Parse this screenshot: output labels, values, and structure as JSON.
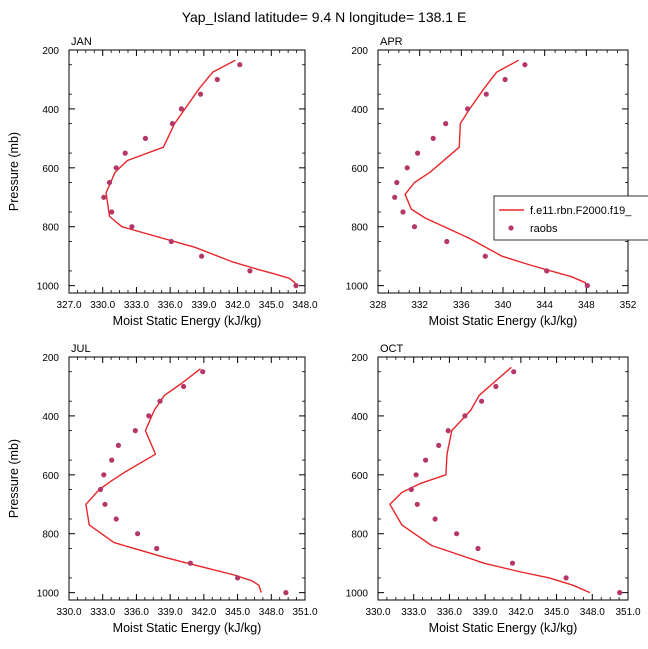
{
  "title": "Yap_Island  latitude= 9.4 N longitude= 138.1 E",
  "colors": {
    "model": "#e8262a",
    "obs": "#b5376a",
    "axis": "#000000"
  },
  "legend": {
    "model_label": "f.e11.rbn.F2000.f19_",
    "obs_label": "raobs"
  },
  "chart_data": [
    {
      "type": "line",
      "panel": "JAN",
      "xlabel": "Moist Static Energy (kJ/kg)",
      "ylabel": "Pressure (mb)",
      "xlim": [
        327,
        348
      ],
      "ylim": [
        200,
        1025
      ],
      "xticks": [
        "327.0",
        "330.0",
        "333.0",
        "336.0",
        "339.0",
        "342.0",
        "345.0",
        "348.0"
      ],
      "yticks": [
        "200",
        "400",
        "600",
        "800",
        "1000"
      ],
      "model": {
        "name": "f.e11.rbn.F2000.f19_",
        "x": [
          341.8,
          339.8,
          338.6,
          336.4,
          335.4,
          332.2,
          331.1,
          330.3,
          330.6,
          331.7,
          338.2,
          341.6,
          343.8,
          345.3,
          346.6,
          347.1,
          347.3
        ],
        "y": [
          235,
          275,
          330,
          450,
          530,
          575,
          615,
          685,
          765,
          800,
          870,
          920,
          945,
          960,
          975,
          990,
          1005
        ]
      },
      "obs": {
        "name": "raobs",
        "x": [
          342.2,
          340.2,
          338.7,
          337.0,
          336.2,
          333.8,
          332.0,
          331.2,
          330.6,
          330.1,
          330.8,
          332.6,
          336.1,
          338.8,
          343.1,
          347.2
        ],
        "y": [
          250,
          300,
          350,
          400,
          450,
          500,
          550,
          600,
          650,
          700,
          750,
          800,
          850,
          900,
          950,
          1000
        ]
      }
    },
    {
      "type": "line",
      "panel": "APR",
      "xlabel": "Moist Static Energy (kJ/kg)",
      "ylabel": "",
      "xlim": [
        328,
        352
      ],
      "ylim": [
        200,
        1025
      ],
      "xticks": [
        "328",
        "332",
        "336",
        "340",
        "344",
        "348",
        "352"
      ],
      "yticks": [
        "200",
        "400",
        "600",
        "800",
        "1000"
      ],
      "model": {
        "name": "f.e11.rbn.F2000.f19_",
        "x": [
          341.5,
          339.4,
          338.2,
          336.8,
          335.9,
          335.8,
          333.0,
          331.5,
          330.6,
          331.2,
          332.5,
          336.8,
          339.9,
          342.6,
          344.6,
          346.6,
          347.9,
          348.0
        ],
        "y": [
          235,
          275,
          330,
          400,
          450,
          530,
          615,
          650,
          690,
          740,
          770,
          840,
          900,
          930,
          950,
          970,
          990,
          1000
        ]
      },
      "obs": {
        "name": "raobs",
        "x": [
          342.1,
          340.2,
          338.4,
          336.6,
          334.5,
          333.3,
          331.8,
          330.8,
          329.8,
          329.6,
          330.4,
          331.5,
          334.6,
          338.3,
          344.2,
          348.1
        ],
        "y": [
          250,
          300,
          350,
          400,
          450,
          500,
          550,
          600,
          650,
          700,
          750,
          800,
          850,
          900,
          950,
          1000
        ]
      }
    },
    {
      "type": "line",
      "panel": "JUL",
      "xlabel": "Moist Static Energy (kJ/kg)",
      "ylabel": "Pressure (mb)",
      "xlim": [
        330,
        351
      ],
      "ylim": [
        200,
        1025
      ],
      "xticks": [
        "330.0",
        "333.0",
        "336.0",
        "339.0",
        "342.0",
        "345.0",
        "348.0",
        "351.0"
      ],
      "yticks": [
        "200",
        "400",
        "600",
        "800",
        "1000"
      ],
      "model": {
        "name": "f.e11.rbn.F2000.f19_",
        "x": [
          341.7,
          340.0,
          338.5,
          337.6,
          336.8,
          337.7,
          335.0,
          333.8,
          332.7,
          331.5,
          331.8,
          334.0,
          338.5,
          342.6,
          344.7,
          346.3,
          346.9,
          347.1
        ],
        "y": [
          240,
          290,
          330,
          380,
          450,
          530,
          590,
          620,
          650,
          700,
          770,
          830,
          880,
          920,
          940,
          960,
          975,
          1000
        ]
      },
      "obs": {
        "name": "raobs",
        "x": [
          341.9,
          340.2,
          338.1,
          337.1,
          335.9,
          334.4,
          333.8,
          333.1,
          332.8,
          333.2,
          334.2,
          336.1,
          337.8,
          340.8,
          345.0,
          349.3
        ],
        "y": [
          250,
          300,
          350,
          400,
          450,
          500,
          550,
          600,
          650,
          700,
          750,
          800,
          850,
          900,
          950,
          1000
        ]
      }
    },
    {
      "type": "line",
      "panel": "OCT",
      "xlabel": "Moist Static Energy (kJ/kg)",
      "ylabel": "",
      "xlim": [
        330,
        351
      ],
      "ylim": [
        200,
        1025
      ],
      "xticks": [
        "330.0",
        "333.0",
        "336.0",
        "339.0",
        "342.0",
        "345.0",
        "348.0",
        "351.0"
      ],
      "yticks": [
        "200",
        "400",
        "600",
        "800",
        "1000"
      ],
      "model": {
        "name": "f.e11.rbn.F2000.f19_",
        "x": [
          341.2,
          338.5,
          337.8,
          336.2,
          335.8,
          335.7,
          333.5,
          332.0,
          331.0,
          332.0,
          334.5,
          338.9,
          342.0,
          344.4,
          346.4,
          347.8
        ],
        "y": [
          235,
          330,
          380,
          450,
          530,
          600,
          630,
          660,
          700,
          770,
          840,
          900,
          930,
          950,
          975,
          1000
        ]
      },
      "obs": {
        "name": "raobs",
        "x": [
          341.4,
          339.9,
          338.7,
          337.3,
          335.9,
          335.1,
          334.0,
          333.2,
          332.8,
          333.3,
          334.8,
          336.6,
          338.4,
          341.3,
          345.8,
          350.3
        ],
        "y": [
          250,
          300,
          350,
          400,
          450,
          500,
          550,
          600,
          650,
          700,
          750,
          800,
          850,
          900,
          950,
          1000
        ]
      }
    }
  ]
}
